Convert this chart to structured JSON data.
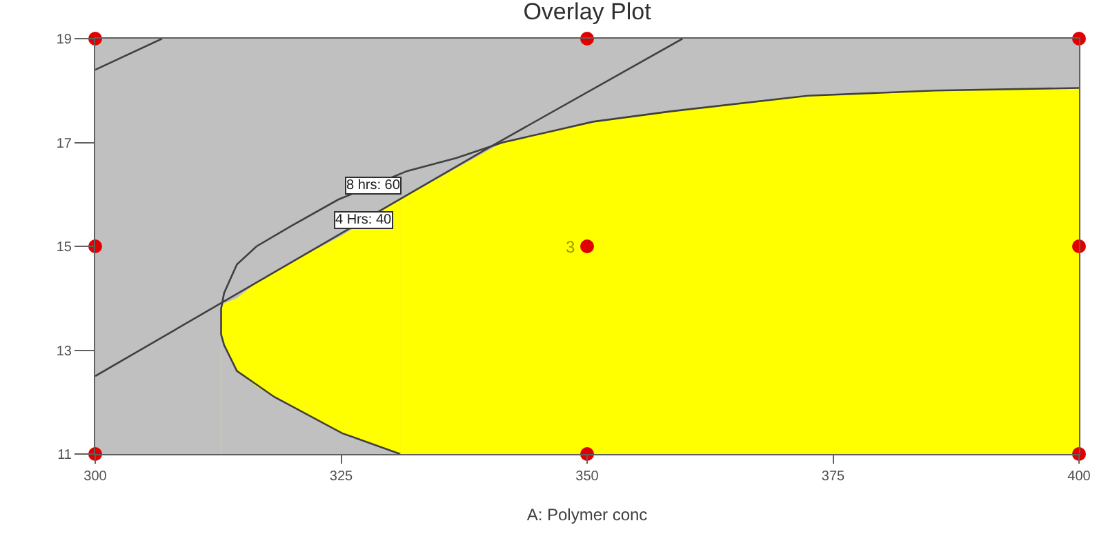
{
  "chart_data": {
    "type": "line",
    "title": "Overlay Plot",
    "xlabel": "A: Polymer conc",
    "xlim": [
      300,
      400
    ],
    "xticks": [
      300,
      325,
      350,
      375,
      400
    ],
    "ylim": [
      11,
      19
    ],
    "yticks": [
      11,
      13,
      15,
      17,
      19
    ],
    "bands": [
      {
        "axis": "x",
        "from": 300,
        "to": 400,
        "color": "#c0c0c0"
      }
    ],
    "series": [
      {
        "type": "area",
        "color": "#ffff00",
        "x": [
          312.8,
          313.1,
          314.4,
          316.4,
          318.2,
          320,
          325,
          331
        ],
        "values": [
          13.8,
          13.9,
          14.0,
          14.3,
          14.5,
          14.7,
          15.2,
          15.9
        ]
      },
      {
        "type": "area",
        "color": "#ffff00",
        "x": [
          331,
          341.4,
          346,
          350.6,
          358.5,
          372.4,
          385.3,
          400
        ],
        "values": [
          15.9,
          17.0,
          17.2,
          17.4,
          17.6,
          17.9,
          18.0,
          18.05
        ]
      },
      {
        "type": "area",
        "color": "#c0c0c0",
        "x": [
          312.8,
          313.1,
          314.4,
          316.4,
          318.2,
          320,
          325,
          331
        ],
        "values": [
          13.3,
          13.1,
          12.6,
          12.3,
          12.1,
          11.9,
          11.4,
          11.0
        ]
      },
      {
        "color": "#404040",
        "x": [
          300,
          320,
          340,
          359.7
        ],
        "values": [
          12.5,
          14.7,
          16.9,
          19.0
        ]
      },
      {
        "color": "#404040",
        "x": [
          331,
          325.1,
          318.2,
          314.4,
          313.1,
          312.8,
          312.8,
          313.1,
          314.4,
          316.4,
          320,
          324.7,
          331.7,
          336.7,
          341.4,
          346,
          350.6,
          358.5,
          372.4,
          385.3,
          400
        ],
        "values": [
          11.0,
          11.4,
          12.1,
          12.6,
          13.1,
          13.3,
          13.8,
          14.1,
          14.65,
          15.0,
          15.4,
          15.9,
          16.45,
          16.7,
          17.0,
          17.2,
          17.4,
          17.6,
          17.9,
          18.0,
          18.05
        ]
      },
      {
        "color": "#404040",
        "x": [
          300,
          306.8
        ],
        "values": [
          18.4,
          19.0
        ]
      },
      {
        "type": "scatter",
        "color": "#e00000",
        "marker": "circle",
        "x": [
          300,
          350,
          400,
          300,
          350,
          400,
          300,
          350,
          400
        ],
        "values": [
          19,
          19,
          19,
          15,
          15,
          15,
          11,
          11,
          11
        ]
      }
    ],
    "annotations": [
      {
        "text": "8 hrs: 60",
        "x": 328.2,
        "y": 16.18
      },
      {
        "text": "4 Hrs: 40",
        "x": 327.3,
        "y": 15.5
      },
      {
        "text": "3",
        "x": 350,
        "y": 15
      }
    ]
  }
}
